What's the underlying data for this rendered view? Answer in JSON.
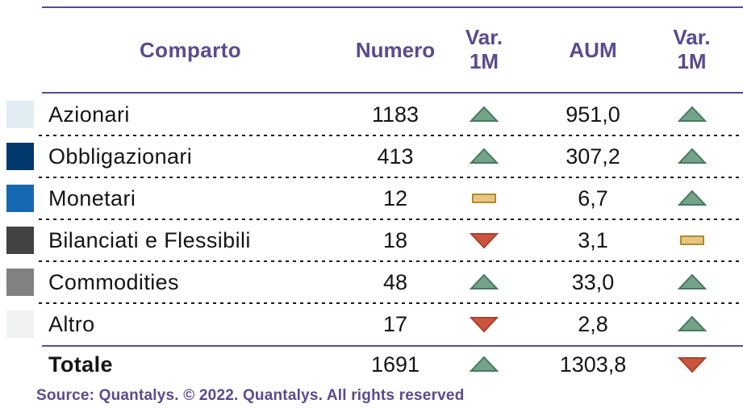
{
  "table": {
    "header": {
      "comparto": "Comparto",
      "numero": "Numero",
      "var_line1": "Var.",
      "var_line2": "1M",
      "aum": "AUM"
    },
    "rows": [
      {
        "comparto": "Azionari",
        "swatch": "#e1edf2",
        "numero": "1183",
        "var_numero": "up",
        "aum": "951,0",
        "var_aum": "up"
      },
      {
        "comparto": "Obbligazionari",
        "swatch": "#00386b",
        "numero": "413",
        "var_numero": "up",
        "aum": "307,2",
        "var_aum": "up"
      },
      {
        "comparto": "Monetari",
        "swatch": "#1668b3",
        "numero": "12",
        "var_numero": "flat",
        "aum": "6,7",
        "var_aum": "up"
      },
      {
        "comparto": "Bilanciati e Flessibili",
        "swatch": "#434343",
        "numero": "18",
        "var_numero": "down",
        "aum": "3,1",
        "var_aum": "flat"
      },
      {
        "comparto": "Commodities",
        "swatch": "#828282",
        "numero": "48",
        "var_numero": "up",
        "aum": "33,0",
        "var_aum": "up"
      },
      {
        "comparto": "Altro",
        "swatch": "#f0f1f1",
        "numero": "17",
        "var_numero": "down",
        "aum": "2,8",
        "var_aum": "up"
      }
    ],
    "total": {
      "label": "Totale",
      "numero": "1691",
      "var_numero": "up",
      "aum": "1303,8",
      "var_aum": "down"
    }
  },
  "footer": {
    "source": "Source: Quantalys. © 2022. Quantalys. All rights reserved"
  },
  "colors": {
    "header_text": "#5a4a8f",
    "rule_purple": "#5a4a8a",
    "up_fill": "#74a389",
    "up_stroke": "#477a5e",
    "down_fill": "#cc5540",
    "down_stroke": "#a8432f",
    "flat_fill": "#e9c57f",
    "flat_stroke": "#ad8c33"
  },
  "chart_data": {
    "type": "table",
    "title": "",
    "columns": [
      "Comparto",
      "Numero",
      "Var. 1M",
      "AUM",
      "Var. 1M"
    ],
    "rows": [
      [
        "Azionari",
        1183,
        "up",
        951.0,
        "up"
      ],
      [
        "Obbligazionari",
        413,
        "up",
        307.2,
        "up"
      ],
      [
        "Monetari",
        12,
        "flat",
        6.7,
        "up"
      ],
      [
        "Bilanciati e Flessibili",
        18,
        "down",
        3.1,
        "flat"
      ],
      [
        "Commodities",
        48,
        "up",
        33.0,
        "up"
      ],
      [
        "Altro",
        17,
        "down",
        2.8,
        "up"
      ],
      [
        "Totale",
        1691,
        "up",
        1303.8,
        "down"
      ]
    ],
    "legend": {
      "up": "increase (green triangle)",
      "flat": "unchanged (yellow dash)",
      "down": "decrease (red triangle)"
    },
    "source": "Source: Quantalys. © 2022. Quantalys. All rights reserved"
  }
}
